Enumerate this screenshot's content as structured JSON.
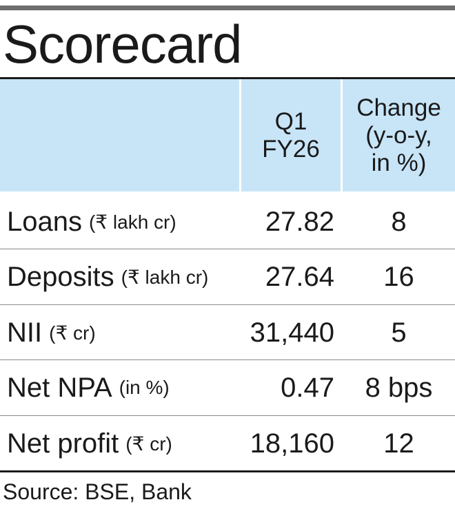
{
  "title": "Scorecard",
  "columns": {
    "period": "Q1\nFY26",
    "change": "Change\n(y-o-y,\nin %)"
  },
  "rows": [
    {
      "label": "Loans",
      "unit": "(₹ lakh cr)",
      "value": "27.82",
      "change": "8"
    },
    {
      "label": "Deposits",
      "unit": "(₹ lakh cr)",
      "value": "27.64",
      "change": "16"
    },
    {
      "label": "NII",
      "unit": "(₹ cr)",
      "value": "31,440",
      "change": "5"
    },
    {
      "label": "Net NPA",
      "unit": "(in %)",
      "value": "0.47",
      "change": "8 bps"
    },
    {
      "label": "Net profit",
      "unit": "(₹ cr)",
      "value": "18,160",
      "change": "12"
    }
  ],
  "source": "Source: BSE, Bank",
  "colors": {
    "header_band": "#c8e5f8",
    "top_rule": "#6d6e70",
    "text": "#1a1a1a"
  }
}
